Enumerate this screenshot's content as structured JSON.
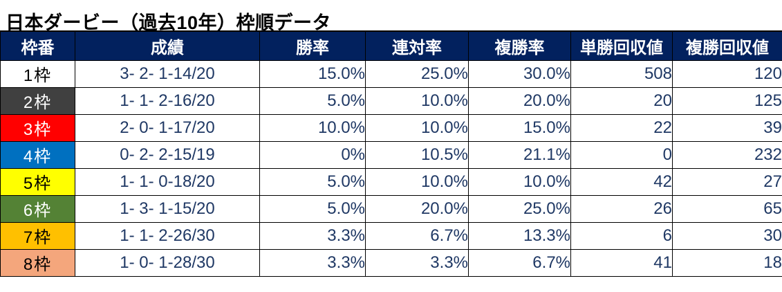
{
  "title": "日本ダービー（過去10年）枠順データ",
  "colors": {
    "header_bg": "#02215E",
    "header_text": "#FFFFFF",
    "data_text": "#1F3864",
    "border": "#000000"
  },
  "frame_styles": [
    {
      "bg": "#FFFFFF",
      "fg": "#000000"
    },
    {
      "bg": "#404040",
      "fg": "#FFFFFF"
    },
    {
      "bg": "#FF0000",
      "fg": "#FFFFFF"
    },
    {
      "bg": "#0070C0",
      "fg": "#FFFFFF"
    },
    {
      "bg": "#FFFF00",
      "fg": "#000000"
    },
    {
      "bg": "#548235",
      "fg": "#FFFFFF"
    },
    {
      "bg": "#FFC000",
      "fg": "#000000"
    },
    {
      "bg": "#F4A67C",
      "fg": "#000000"
    }
  ],
  "chart_data": {
    "type": "table",
    "title": "日本ダービー（過去10年）枠順データ",
    "columns": [
      "枠番",
      "成績",
      "勝率",
      "連対率",
      "複勝率",
      "単勝回収値",
      "複勝回収値"
    ],
    "rows": [
      [
        "1枠",
        "3- 2- 1-14/20",
        "15.0%",
        "25.0%",
        "30.0%",
        "508",
        "120"
      ],
      [
        "2枠",
        "1- 1- 2-16/20",
        "5.0%",
        "10.0%",
        "20.0%",
        "20",
        "125"
      ],
      [
        "3枠",
        "2- 0- 1-17/20",
        "10.0%",
        "10.0%",
        "15.0%",
        "22",
        "39"
      ],
      [
        "4枠",
        "0- 2- 2-15/19",
        "0%",
        "10.5%",
        "21.1%",
        "0",
        "232"
      ],
      [
        "5枠",
        "1- 1- 0-18/20",
        "5.0%",
        "10.0%",
        "10.0%",
        "42",
        "27"
      ],
      [
        "6枠",
        "1- 3- 1-15/20",
        "5.0%",
        "20.0%",
        "25.0%",
        "26",
        "65"
      ],
      [
        "7枠",
        "1- 1- 2-26/30",
        "3.3%",
        "6.7%",
        "13.3%",
        "6",
        "30"
      ],
      [
        "8枠",
        "1- 0- 1-28/30",
        "3.3%",
        "3.3%",
        "6.7%",
        "41",
        "18"
      ]
    ]
  }
}
